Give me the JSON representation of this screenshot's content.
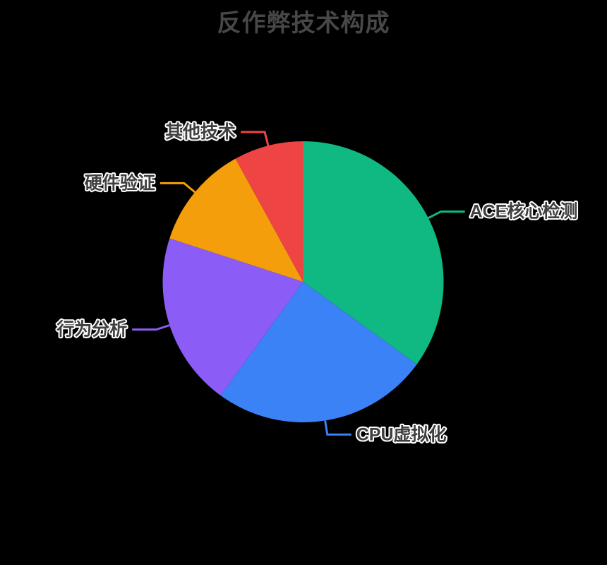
{
  "page": {
    "background_color": "#000000"
  },
  "chart_data": {
    "type": "pie",
    "title": "反作弊技术构成",
    "title_color": "#474747",
    "label_text_color": "#3f3f3f",
    "label_outline_color": "#ffffff",
    "label_position": "outside",
    "legend": "none",
    "start_angle_deg": 90,
    "direction": "clockwise",
    "slices": [
      {
        "id": "ace-core-detection",
        "label": "ACE核心检测",
        "value": 35,
        "color": "#10B981"
      },
      {
        "id": "cpu-virtualization",
        "label": "CPU虚拟化",
        "value": 25,
        "color": "#3B82F6"
      },
      {
        "id": "behavior-analysis",
        "label": "行为分析",
        "value": 20,
        "color": "#8B5CF6"
      },
      {
        "id": "hardware-verification",
        "label": "硬件验证",
        "value": 12,
        "color": "#F59E0B"
      },
      {
        "id": "other-tech",
        "label": "其他技术",
        "value": 8,
        "color": "#EF4444"
      }
    ]
  }
}
